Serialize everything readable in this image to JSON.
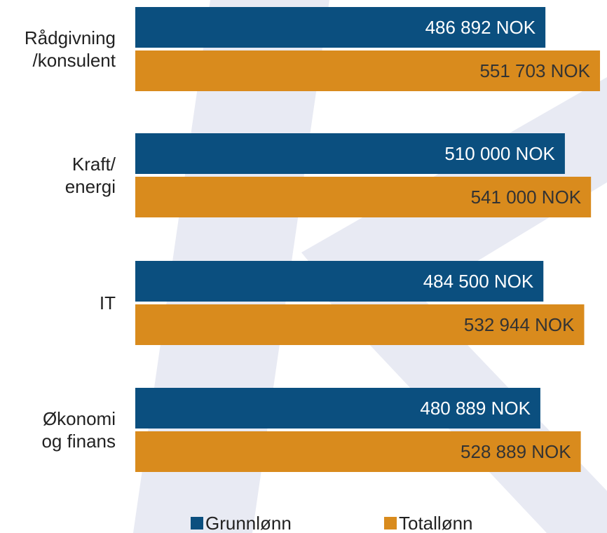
{
  "chart_data": {
    "type": "bar",
    "orientation": "horizontal",
    "categories": [
      "Rådgivning\n/konsulent",
      "Kraft/\nenergi",
      "IT",
      "Økonomi\nog finans"
    ],
    "series": [
      {
        "name": "Grunnlønn",
        "color": "#0b4f7f",
        "values": [
          486892,
          510000,
          484500,
          480889
        ],
        "value_labels": [
          "486 892 NOK",
          "510 000 NOK",
          "484 500 NOK",
          "480 889 NOK"
        ],
        "label_color": "#ffffff"
      },
      {
        "name": "Totallønn",
        "color": "#d98b1d",
        "values": [
          551703,
          541000,
          532944,
          528889
        ],
        "value_labels": [
          "551 703 NOK",
          "541 000 NOK",
          "532 944 NOK",
          "528 889 NOK"
        ],
        "label_color": "#333333"
      }
    ],
    "xlim": [
      0,
      560000
    ],
    "legend": "bottom"
  }
}
